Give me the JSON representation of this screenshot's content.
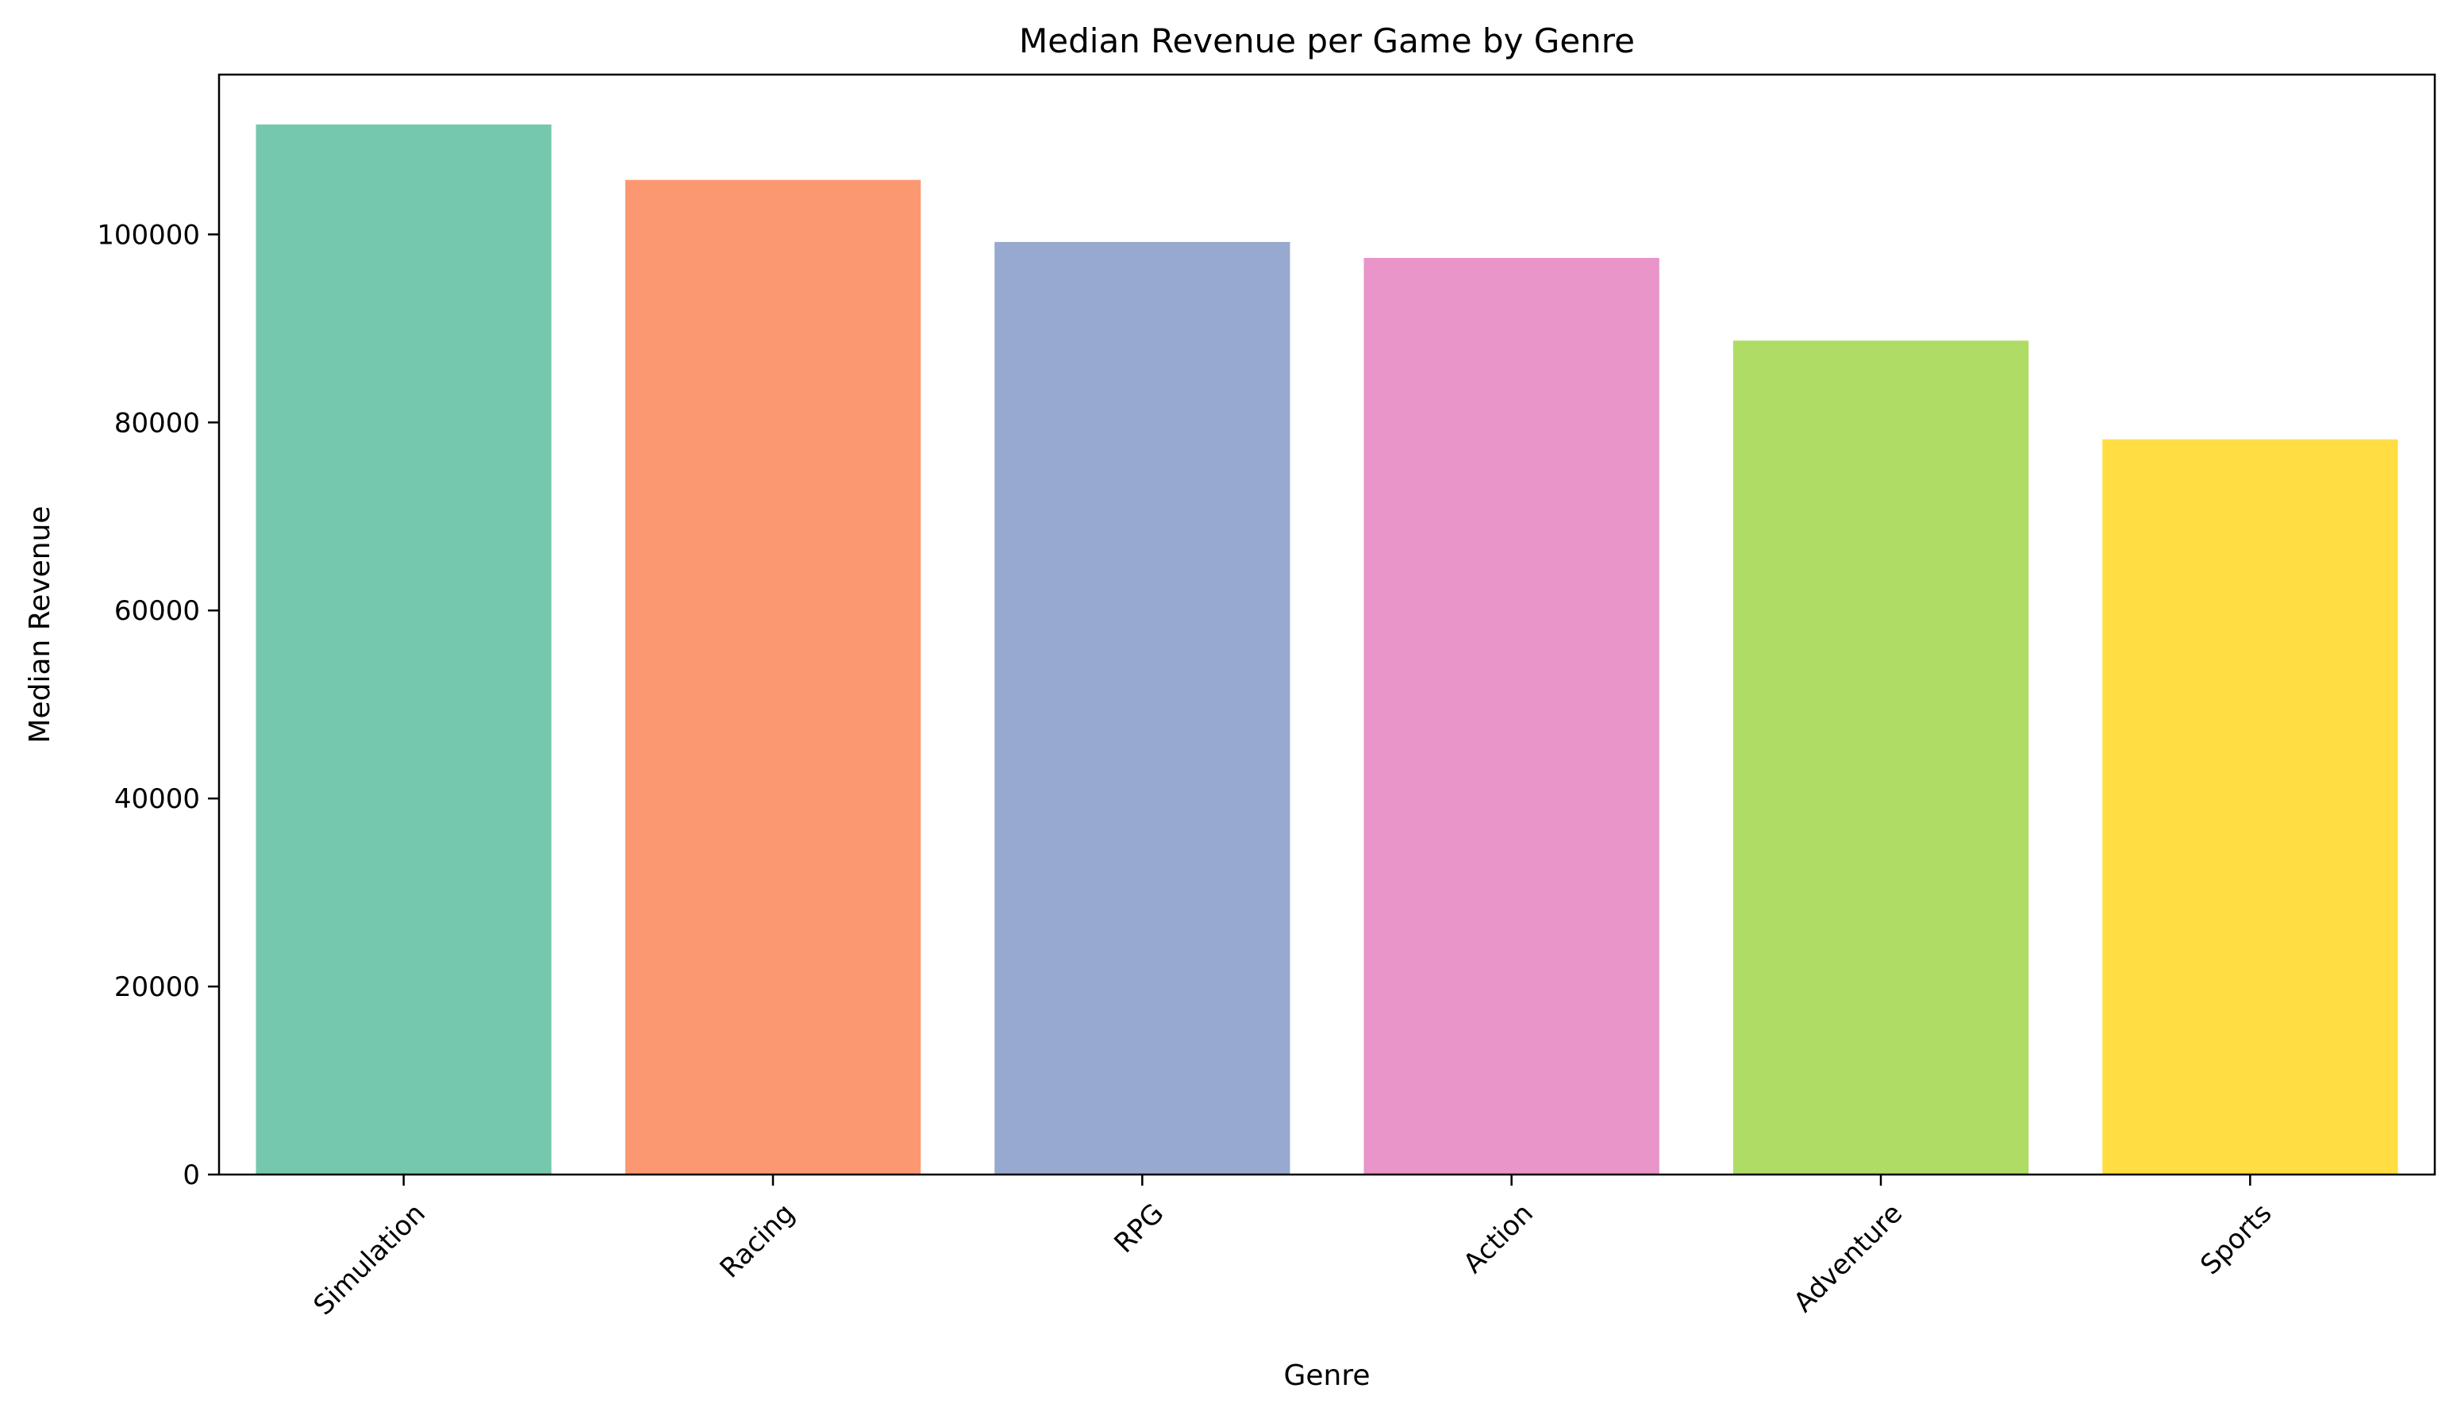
{
  "chart_data": {
    "type": "bar",
    "title": "Median Revenue per Game by Genre",
    "xlabel": "Genre",
    "ylabel": "Median Revenue",
    "categories": [
      "Simulation",
      "Racing",
      "RPG",
      "Action",
      "Adventure",
      "Sports"
    ],
    "values": [
      111700,
      105800,
      99200,
      97500,
      88700,
      78200
    ],
    "colors": [
      "#66c2a5",
      "#fc8d62",
      "#8da0cb",
      "#e78ac3",
      "#a6d854",
      "#ffd92f"
    ],
    "bar_opacity": 0.9,
    "ylim": [
      0,
      117000
    ],
    "yticks": [
      0,
      20000,
      40000,
      60000,
      80000,
      100000
    ],
    "ytick_labels": [
      "0",
      "20000",
      "40000",
      "60000",
      "80000",
      "100000"
    ],
    "grid": false,
    "legend": "none"
  }
}
